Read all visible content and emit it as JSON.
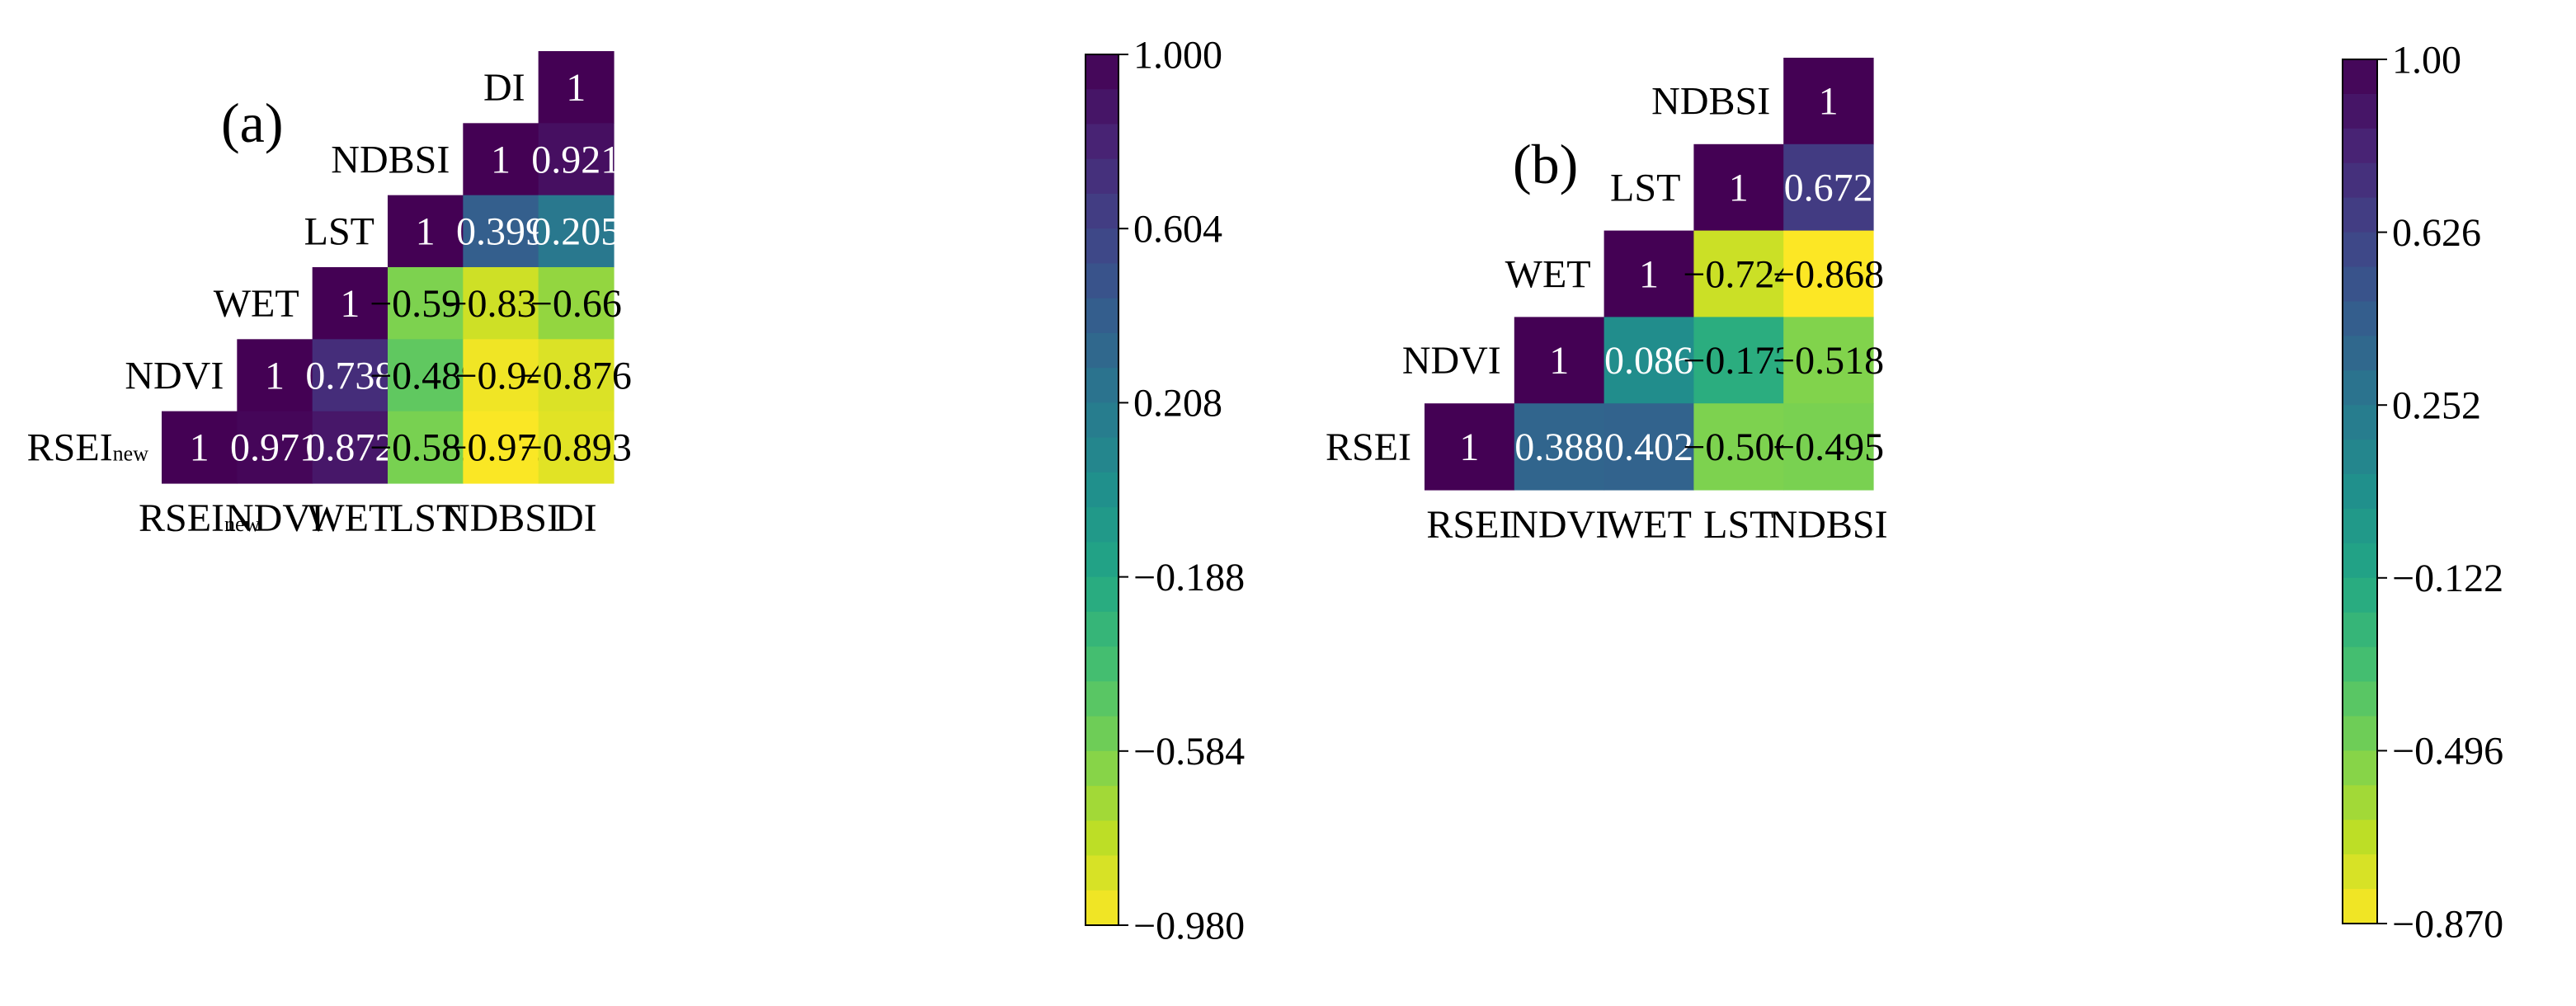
{
  "chart_data": [
    {
      "type": "heatmap",
      "panel_label": "(a)",
      "row_labels": [
        "DI",
        "NDBSI",
        "LST",
        "WET",
        "NDVI",
        "RSEI"
      ],
      "row_label_subscripts": [
        "",
        "",
        "",
        "",
        "",
        "new"
      ],
      "col_labels": [
        "RSEI",
        "NDVI",
        "WET",
        "LST",
        "NDBSI",
        "DI"
      ],
      "col_label_subscripts": [
        "new",
        "",
        "",
        "",
        "",
        ""
      ],
      "values": [
        [
          null,
          null,
          null,
          null,
          null,
          1
        ],
        [
          null,
          null,
          null,
          null,
          1,
          0.921
        ],
        [
          null,
          null,
          null,
          1,
          0.399,
          0.205
        ],
        [
          null,
          null,
          1,
          -0.595,
          -0.835,
          -0.66
        ],
        [
          null,
          1,
          0.738,
          -0.489,
          -0.94,
          -0.876
        ],
        [
          1,
          0.971,
          0.872,
          -0.582,
          -0.972,
          -0.893
        ]
      ],
      "labels": [
        [
          null,
          null,
          null,
          null,
          null,
          "1"
        ],
        [
          null,
          null,
          null,
          null,
          "1",
          "0.921"
        ],
        [
          null,
          null,
          null,
          "1",
          "0.399",
          "0.205"
        ],
        [
          null,
          null,
          "1",
          "−0.595",
          "−0.835",
          "−0.66"
        ],
        [
          null,
          "1",
          "0.738",
          "−0.489",
          "−0.94",
          "−0.876"
        ],
        [
          "1",
          "0.971",
          "0.872",
          "−0.582",
          "−0.972",
          "−0.893"
        ]
      ],
      "colorbar": {
        "min": -0.98,
        "max": 1.0,
        "ticks": [
          "1.000",
          "0.604",
          "0.208",
          "−0.188",
          "−0.584",
          "−0.980"
        ]
      }
    },
    {
      "type": "heatmap",
      "panel_label": "(b)",
      "row_labels": [
        "NDBSI",
        "LST",
        "WET",
        "NDVI",
        "RSEI"
      ],
      "row_label_subscripts": [
        "",
        "",
        "",
        "",
        ""
      ],
      "col_labels": [
        "RSEI",
        "NDVI",
        "WET",
        "LST",
        "NDBSI"
      ],
      "col_label_subscripts": [
        "",
        "",
        "",
        "",
        ""
      ],
      "values": [
        [
          null,
          null,
          null,
          null,
          1
        ],
        [
          null,
          null,
          null,
          1,
          0.672
        ],
        [
          null,
          null,
          1,
          -0.724,
          -0.868
        ],
        [
          null,
          1,
          0.086,
          -0.173,
          -0.518
        ],
        [
          1,
          0.388,
          0.402,
          -0.506,
          -0.495
        ]
      ],
      "labels": [
        [
          null,
          null,
          null,
          null,
          "1"
        ],
        [
          null,
          null,
          null,
          "1",
          "0.672"
        ],
        [
          null,
          null,
          "1",
          "−0.724",
          "−0.868"
        ],
        [
          null,
          "1",
          "0.086",
          "−0.173",
          "−0.518"
        ],
        [
          "1",
          "0.388",
          "0.402",
          "−0.506",
          "−0.495"
        ]
      ],
      "colorbar": {
        "min": -0.87,
        "max": 1.0,
        "ticks": [
          "1.00",
          "0.626",
          "0.252",
          "−0.122",
          "−0.496",
          "−0.870"
        ]
      }
    }
  ],
  "colormap": "viridis_r"
}
